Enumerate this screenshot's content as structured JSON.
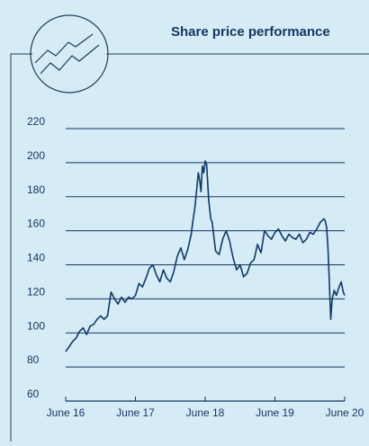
{
  "colors": {
    "background": "#d5ebf6",
    "frame": "#1f3b57",
    "title": "#15355d",
    "gridline": "#15355d",
    "line": "#0f3a66",
    "tick_text": "#15355d"
  },
  "header": {
    "icon": "line-chart-circle-icon",
    "title": "Share price performance"
  },
  "chart_data": {
    "type": "line",
    "title": "Share price performance",
    "xlabel": "",
    "ylabel": "",
    "ylim": [
      60,
      220
    ],
    "y_ticks": [
      220,
      200,
      180,
      160,
      140,
      120,
      100,
      80,
      60
    ],
    "x_ticks": [
      {
        "label": "June 16",
        "t": 0
      },
      {
        "label": "June 17",
        "t": 1
      },
      {
        "label": "June 18",
        "t": 2
      },
      {
        "label": "June 19",
        "t": 3
      },
      {
        "label": "June 20",
        "t": 4
      }
    ],
    "grid": true,
    "legend": "none",
    "series": [
      {
        "x": [
          0.0,
          0.05,
          0.1,
          0.15,
          0.2,
          0.25,
          0.3,
          0.35,
          0.4,
          0.45,
          0.5,
          0.55,
          0.6,
          0.65,
          0.7,
          0.75,
          0.8,
          0.85,
          0.9,
          0.95,
          1.0,
          1.05,
          1.1,
          1.15,
          1.2,
          1.25,
          1.3,
          1.35,
          1.4,
          1.45,
          1.5,
          1.55,
          1.6,
          1.65,
          1.7,
          1.75,
          1.8,
          1.82,
          1.85,
          1.88,
          1.9,
          1.92,
          1.94,
          1.96,
          1.98,
          2.0,
          2.02,
          2.05,
          2.08,
          2.1,
          2.12,
          2.15,
          2.2,
          2.25,
          2.3,
          2.35,
          2.4,
          2.45,
          2.5,
          2.55,
          2.6,
          2.65,
          2.7,
          2.75,
          2.8,
          2.85,
          2.9,
          2.95,
          3.0,
          3.05,
          3.1,
          3.15,
          3.2,
          3.25,
          3.3,
          3.35,
          3.4,
          3.45,
          3.5,
          3.55,
          3.6,
          3.65,
          3.7,
          3.72,
          3.74,
          3.76,
          3.78,
          3.8,
          3.82,
          3.85,
          3.88,
          3.92,
          3.95,
          3.98,
          4.0
        ],
        "y": [
          89,
          92,
          95,
          97,
          101,
          103,
          99,
          104,
          105,
          108,
          110,
          108,
          110,
          124,
          120,
          117,
          121,
          118,
          121,
          120,
          122,
          129,
          127,
          132,
          138,
          140,
          134,
          130,
          137,
          132,
          130,
          136,
          145,
          150,
          143,
          149,
          158,
          165,
          173,
          185,
          194,
          190,
          183,
          198,
          194,
          201,
          199,
          178,
          167,
          165,
          158,
          148,
          146,
          155,
          160,
          154,
          144,
          137,
          140,
          133,
          135,
          141,
          143,
          152,
          147,
          160,
          157,
          155,
          159,
          161,
          157,
          154,
          158,
          156,
          155,
          158,
          153,
          155,
          159,
          158,
          161,
          165,
          167,
          166,
          162,
          150,
          130,
          108,
          120,
          125,
          122,
          127,
          130,
          124,
          122
        ]
      }
    ]
  }
}
